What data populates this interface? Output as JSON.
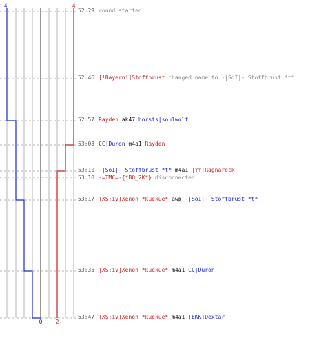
{
  "colors": {
    "blue": "#1c28c8",
    "red": "#c81e1e",
    "gray": "#888888",
    "black": "#111111",
    "grid": "#b4b4b4",
    "dash": "#b4b4b4"
  },
  "chart_data": {
    "type": "line",
    "score_top": {
      "left": "4",
      "right": "4"
    },
    "score_bottom": {
      "left": "0",
      "right": "2"
    },
    "series": [
      {
        "team": "blue",
        "steps": [
          4,
          4,
          3,
          2,
          1,
          0
        ]
      },
      {
        "team": "red",
        "steps": [
          4,
          3,
          2,
          2,
          2,
          2
        ]
      }
    ]
  },
  "events": [
    {
      "time": "52:29",
      "parts": [
        {
          "text": "round started",
          "color": "gray"
        }
      ]
    },
    {
      "time": "52:46",
      "parts": [
        {
          "text": "[!Bayern!]Stoffbrust",
          "color": "red"
        },
        {
          "text": " changed name to ",
          "color": "gray"
        },
        {
          "text": "-|SoI|- Stoffbrust *t*",
          "color": "gray"
        }
      ]
    },
    {
      "time": "52:57",
      "parts": [
        {
          "text": "Rayden",
          "color": "red"
        },
        {
          "text": " ak47 ",
          "color": "black"
        },
        {
          "text": "horsts|soulwolf",
          "color": "blue"
        }
      ]
    },
    {
      "time": "53:03",
      "parts": [
        {
          "text": "CC|Duron",
          "color": "blue"
        },
        {
          "text": " m4a1 ",
          "color": "black"
        },
        {
          "text": "Rayden",
          "color": "red"
        }
      ]
    },
    {
      "time": "53:10",
      "parts": [
        {
          "text": "-|SoI|- Stoffbrust *t*",
          "color": "blue"
        },
        {
          "text": " m4a1 ",
          "color": "black"
        },
        {
          "text": "|YY|Ragnarock",
          "color": "red"
        }
      ]
    },
    {
      "time": "53:10",
      "parts": [
        {
          "text": "-=TMC=-{*BO_2K*}",
          "color": "red"
        },
        {
          "text": " disconnected",
          "color": "gray"
        }
      ]
    },
    {
      "time": "53:17",
      "parts": [
        {
          "text": "[XS:iv]Xenon *kuekue*",
          "color": "red"
        },
        {
          "text": " awp ",
          "color": "black"
        },
        {
          "text": "-|SoI|- Stoffbrust *t*",
          "color": "blue"
        }
      ]
    },
    {
      "time": "53:35",
      "parts": [
        {
          "text": "[XS:iv]Xenon *kuekue*",
          "color": "red"
        },
        {
          "text": " m4a1 ",
          "color": "black"
        },
        {
          "text": "CC|Duron",
          "color": "blue"
        }
      ]
    },
    {
      "time": "53:47",
      "parts": [
        {
          "text": "[XS:iv]Xenon *kuekue*",
          "color": "red"
        },
        {
          "text": " m4a1 ",
          "color": "black"
        },
        {
          "text": "[EKK]Dextar",
          "color": "blue"
        }
      ]
    }
  ]
}
